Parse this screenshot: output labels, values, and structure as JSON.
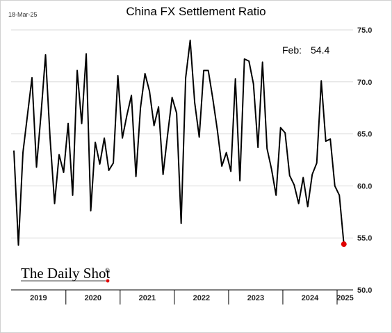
{
  "date_stamp": "18-Mar-25",
  "logo": {
    "text": "The Daily Shot",
    "mark": "®"
  },
  "chart_data": {
    "type": "line",
    "title": "China FX Settlement Ratio",
    "annotation": {
      "label": "Feb:",
      "value": "54.4"
    },
    "ylim": [
      50.0,
      75.0
    ],
    "y_ticks": [
      "75.0",
      "70.0",
      "65.0",
      "60.0",
      "55.0",
      "50.0"
    ],
    "y_axis_position": "right",
    "grid": "horizontal",
    "x_year_labels": [
      "2019",
      "2020",
      "2021",
      "2022",
      "2023",
      "2024",
      "2025"
    ],
    "x_start": "2019-01",
    "x_end": "2025-02",
    "series": [
      {
        "color": "#000000",
        "x": [
          "2019-01",
          "2019-02",
          "2019-03",
          "2019-04",
          "2019-05",
          "2019-06",
          "2019-07",
          "2019-08",
          "2019-09",
          "2019-10",
          "2019-11",
          "2019-12",
          "2020-01",
          "2020-02",
          "2020-03",
          "2020-04",
          "2020-05",
          "2020-06",
          "2020-07",
          "2020-08",
          "2020-09",
          "2020-10",
          "2020-11",
          "2020-12",
          "2021-01",
          "2021-02",
          "2021-03",
          "2021-04",
          "2021-05",
          "2021-06",
          "2021-07",
          "2021-08",
          "2021-09",
          "2021-10",
          "2021-11",
          "2021-12",
          "2022-01",
          "2022-02",
          "2022-03",
          "2022-04",
          "2022-05",
          "2022-06",
          "2022-07",
          "2022-08",
          "2022-09",
          "2022-10",
          "2022-11",
          "2022-12",
          "2023-01",
          "2023-02",
          "2023-03",
          "2023-04",
          "2023-05",
          "2023-06",
          "2023-07",
          "2023-08",
          "2023-09",
          "2023-10",
          "2023-11",
          "2023-12",
          "2024-01",
          "2024-02",
          "2024-03",
          "2024-04",
          "2024-05",
          "2024-06",
          "2024-07",
          "2024-08",
          "2024-09",
          "2024-10",
          "2024-11",
          "2024-12",
          "2025-01",
          "2025-02"
        ],
        "values": [
          63.4,
          54.3,
          63.2,
          66.8,
          70.4,
          61.8,
          66.9,
          72.6,
          64.6,
          58.3,
          63.0,
          61.3,
          66.0,
          59.1,
          71.1,
          66.0,
          72.7,
          57.6,
          64.2,
          62.1,
          64.6,
          61.5,
          62.2,
          70.6,
          64.6,
          66.8,
          68.7,
          60.9,
          67.5,
          70.8,
          69.1,
          65.8,
          67.6,
          61.1,
          64.9,
          68.5,
          67.0,
          56.4,
          70.4,
          74.0,
          68.0,
          64.7,
          71.1,
          71.1,
          68.4,
          65.4,
          61.9,
          63.2,
          61.4,
          70.3,
          60.5,
          72.2,
          72.0,
          69.8,
          63.7,
          71.9,
          63.6,
          61.6,
          59.1,
          65.6,
          65.1,
          61.0,
          60.1,
          58.3,
          60.8,
          58.0,
          61.1,
          62.2,
          70.1,
          64.3,
          64.5,
          60.0,
          59.1,
          54.4
        ]
      }
    ],
    "last_point": {
      "x": "2025-02",
      "value": 54.4,
      "color": "#e00000"
    }
  }
}
